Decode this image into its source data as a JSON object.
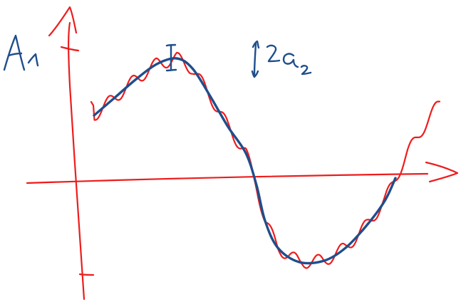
{
  "colors": {
    "red_ink": "#ee1c1c",
    "blue_ink": "#1f4e8c",
    "background": "#ffffff"
  },
  "labels": {
    "amplitude": "A1",
    "ripple": "2a2"
  }
}
